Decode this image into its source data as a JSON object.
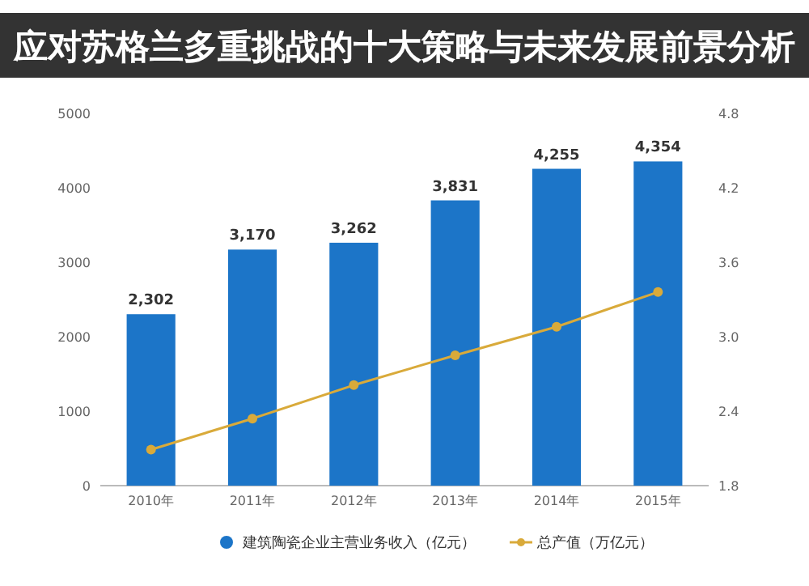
{
  "chart_data": {
    "type": "bar",
    "title": "应对苏格兰多重挑战的十大策略与未来发展前景分析",
    "categories": [
      "2010年",
      "2011年",
      "2012年",
      "2013年",
      "2014年",
      "2015年"
    ],
    "series": [
      {
        "name": "建筑陶瓷企业主营业务收入（亿元）",
        "color": "#1c75c8",
        "values": [
          2302,
          3170,
          3262,
          3831,
          4255,
          4354
        ],
        "value_labels": [
          "2,302",
          "3,170",
          "3,262",
          "3,831",
          "4,255",
          "4,354"
        ]
      },
      {
        "name": "总产值（万亿元）",
        "type": "line",
        "axis": "y2",
        "color": "#d9aa3a",
        "marker": "circle",
        "values": [
          2.09,
          2.34,
          2.61,
          2.85,
          3.08,
          3.36
        ]
      }
    ],
    "ylim": [
      0,
      5000
    ],
    "yticks": [
      0,
      1000,
      2000,
      3000,
      4000,
      5000
    ],
    "y2lim": [
      1.8,
      4.8
    ],
    "y2ticks": [
      1.8,
      2.4,
      {
        "value": 3,
        "label": "3.0"
      },
      3.6,
      4.2,
      4.8
    ],
    "grid": false,
    "legend": "bottom"
  }
}
